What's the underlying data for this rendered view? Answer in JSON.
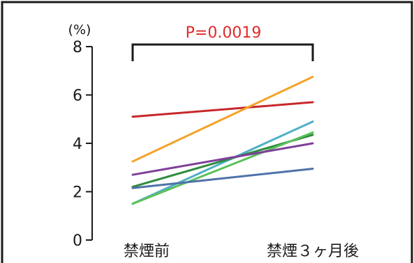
{
  "chart_data": {
    "type": "line",
    "title": "",
    "xlabel": "",
    "ylabel": "(%)",
    "ylim": [
      0,
      8
    ],
    "y_ticks": [
      "0",
      "2",
      "4",
      "6",
      "8"
    ],
    "categories": [
      "禁煙前",
      "禁煙３ヶ月後"
    ],
    "grid": false,
    "legend": "none",
    "annotation": {
      "text": "P=0.0019",
      "color": "#e02a2a"
    },
    "series": [
      {
        "values": [
          5.1,
          5.7
        ],
        "color": "#c8282b"
      },
      {
        "values": [
          3.25,
          6.75
        ],
        "color": "#f4a227"
      },
      {
        "values": [
          1.5,
          4.9
        ],
        "color": "#4fb0c6"
      },
      {
        "values": [
          2.2,
          4.35
        ],
        "color": "#2e8b3c"
      },
      {
        "values": [
          1.5,
          4.45
        ],
        "color": "#5cc05a"
      },
      {
        "values": [
          2.7,
          4.0
        ],
        "color": "#7f3f9a"
      },
      {
        "values": [
          2.15,
          2.95
        ],
        "color": "#4f72a8"
      }
    ]
  }
}
